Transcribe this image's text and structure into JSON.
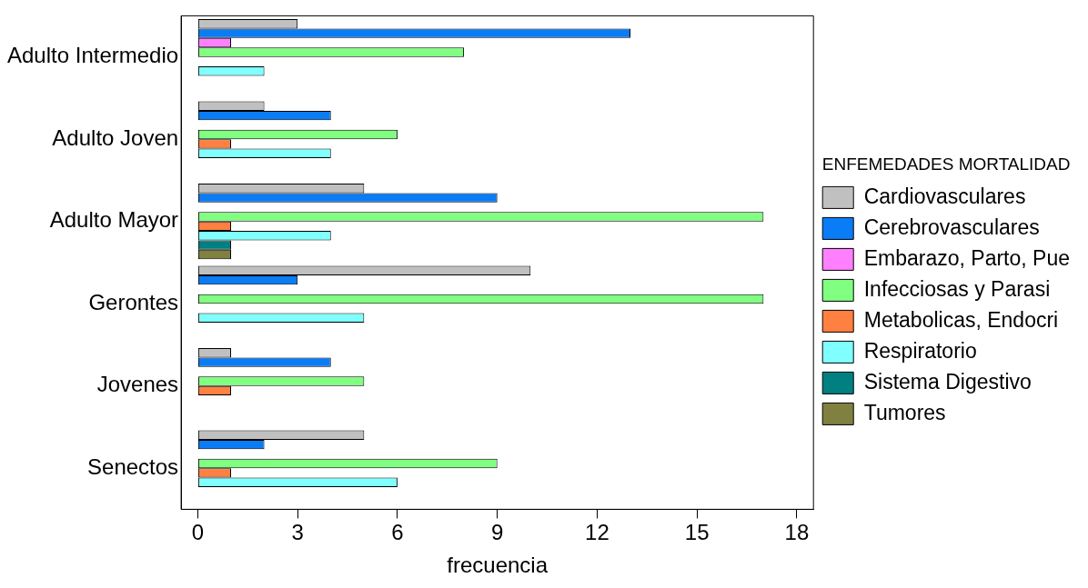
{
  "chart_data": {
    "type": "bar",
    "orientation": "horizontal",
    "xlabel": "frecuencia",
    "legend_title": "ENFEMEDADES MORTALIDAD",
    "legend": "right",
    "grid": false,
    "categories": [
      "Adulto Intermedio",
      "Adulto Joven",
      "Adulto Mayor",
      "Gerontes",
      "Jovenes",
      "Senectos"
    ],
    "xlim": [
      -0.5,
      18.5
    ],
    "xticks": [
      0,
      3,
      6,
      9,
      12,
      15,
      18
    ],
    "series": [
      {
        "name": "Cardiovasculares",
        "color": "#c0c0c0",
        "values": [
          3,
          2,
          5,
          10,
          1,
          5
        ]
      },
      {
        "name": "Cerebrovasculares",
        "color": "#0a7cf5",
        "values": [
          13,
          4,
          9,
          3,
          4,
          2
        ]
      },
      {
        "name": "Embarazo, Parto, Pue",
        "color": "#ff80ff",
        "values": [
          1,
          0,
          0,
          0,
          0,
          0
        ]
      },
      {
        "name": "Infecciosas y Parasi",
        "color": "#80ff80",
        "values": [
          8,
          6,
          17,
          17,
          5,
          9
        ]
      },
      {
        "name": "Metabolicas, Endocri",
        "color": "#ff8040",
        "values": [
          0,
          1,
          1,
          0,
          1,
          1
        ]
      },
      {
        "name": "Respiratorio",
        "color": "#80ffff",
        "values": [
          2,
          4,
          4,
          5,
          0,
          6
        ]
      },
      {
        "name": "Sistema Digestivo",
        "color": "#008080",
        "values": [
          0,
          0,
          1,
          0,
          0,
          0
        ]
      },
      {
        "name": "Tumores",
        "color": "#808040",
        "values": [
          0,
          0,
          1,
          0,
          0,
          0
        ]
      }
    ]
  }
}
